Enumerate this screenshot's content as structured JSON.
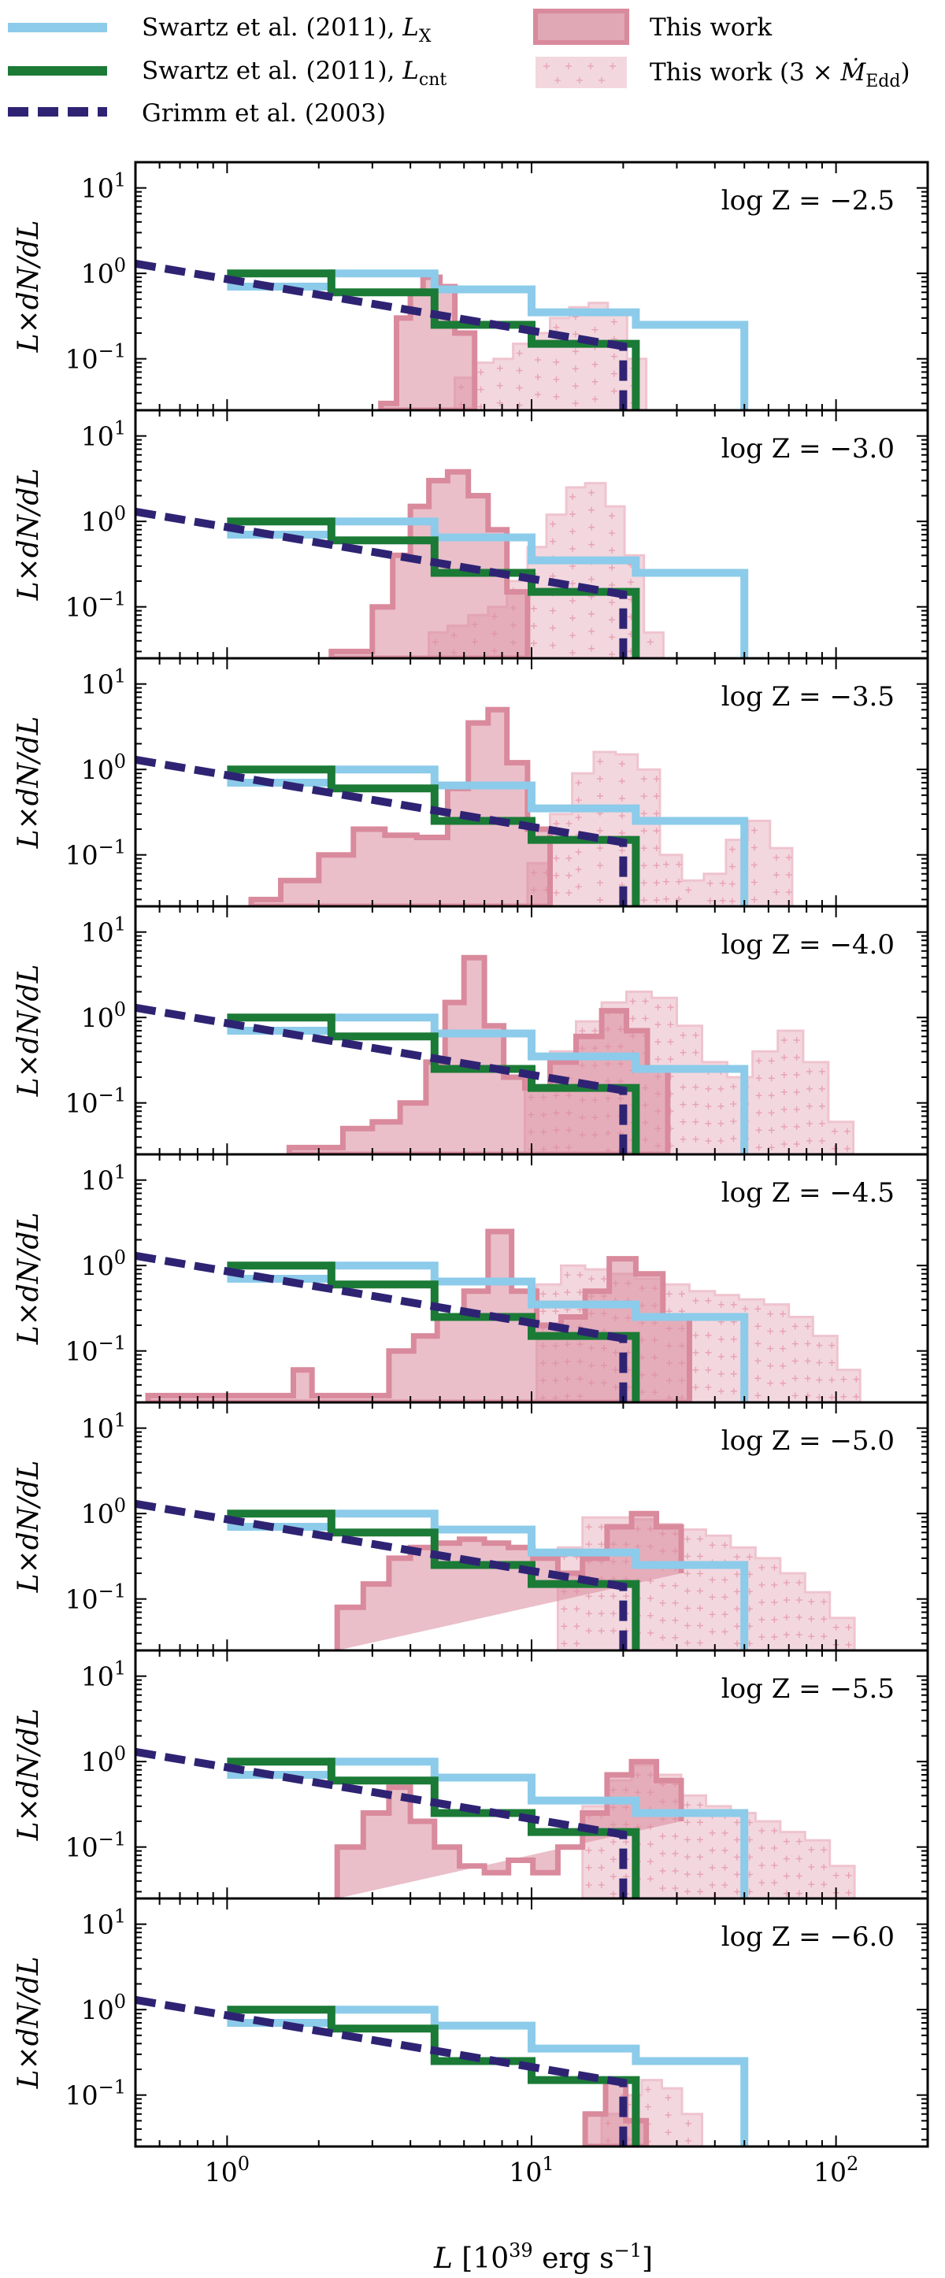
{
  "legend": {
    "items": [
      {
        "key": "lx",
        "label": "Swartz et al. (2011), L_X",
        "color": "#8ccbea"
      },
      {
        "key": "lcnt",
        "label": "Swartz et al. (2011), L_cnt",
        "color": "#1b7a36"
      },
      {
        "key": "grimm",
        "label": "Grimm et al. (2003)",
        "color": "#2e2373"
      },
      {
        "key": "work",
        "label": "This work",
        "color": "#d98a9c"
      },
      {
        "key": "work3",
        "label": "This work (3 × Ṁ_Edd)",
        "color": "#f0c6d0"
      }
    ]
  },
  "chart_data": {
    "type": "histogram-stack",
    "xlabel": "L [10^39 erg s^-1]",
    "ylabel": "L × dN/dL",
    "xscale": "log",
    "yscale": "log",
    "xlim": [
      0.5,
      200
    ],
    "ylim": [
      0.025,
      20
    ],
    "xticks": [
      {
        "value": 1,
        "label": "10^0"
      },
      {
        "value": 10,
        "label": "10^1"
      },
      {
        "value": 100,
        "label": "10^2"
      }
    ],
    "yticks": [
      {
        "value": 0.1,
        "label": "10^-1"
      },
      {
        "value": 1,
        "label": "10^0"
      },
      {
        "value": 10,
        "label": "10^1"
      }
    ],
    "reference": {
      "swartz_lx": {
        "edges": [
          1.0,
          2.2,
          4.8,
          10.0,
          22.0,
          50.0
        ],
        "values": [
          0.7,
          1.0,
          0.65,
          0.35,
          0.25
        ]
      },
      "swartz_lcnt": {
        "edges": [
          1.0,
          2.2,
          4.8,
          10.0,
          22.0
        ],
        "values": [
          1.0,
          0.6,
          0.25,
          0.15
        ]
      },
      "grimm": {
        "x": [
          0.5,
          20
        ],
        "y": [
          1.3,
          0.14
        ],
        "drop_at": 20
      }
    },
    "panels": [
      {
        "label": "log Z = −2.5",
        "work": {
          "edges": [
            3.2,
            3.6,
            4.0,
            4.4,
            5.0,
            5.6,
            6.5
          ],
          "values": [
            0.03,
            0.3,
            0.6,
            0.9,
            0.7,
            0.2
          ]
        },
        "work3": {
          "edges": [
            5.6,
            6.5,
            7.5,
            8.7,
            10.0,
            11.5,
            13.3,
            15.4,
            17.8,
            20.6,
            23.8
          ],
          "values": [
            0.06,
            0.09,
            0.1,
            0.15,
            0.2,
            0.3,
            0.4,
            0.45,
            0.35,
            0.1
          ]
        }
      },
      {
        "label": "log Z = −3.0",
        "work": {
          "edges": [
            2.2,
            3.0,
            3.5,
            4.0,
            4.6,
            5.3,
            6.2,
            7.2,
            8.3,
            9.7
          ],
          "values": [
            0.03,
            0.1,
            0.4,
            1.5,
            3.0,
            3.8,
            2.0,
            0.8,
            0.15
          ]
        },
        "work3": {
          "edges": [
            4.6,
            5.3,
            6.2,
            7.2,
            8.3,
            9.7,
            11.2,
            13.0,
            15.0,
            17.5,
            20.2,
            23.4,
            27.1
          ],
          "values": [
            0.05,
            0.06,
            0.08,
            0.1,
            0.2,
            0.5,
            1.2,
            2.5,
            2.8,
            1.5,
            0.4,
            0.05
          ]
        }
      },
      {
        "label": "log Z = −3.5",
        "work": {
          "edges": [
            1.2,
            1.5,
            2.0,
            2.6,
            3.3,
            4.2,
            5.3,
            6.2,
            7.2,
            8.3,
            9.7,
            11.5
          ],
          "values": [
            0.03,
            0.05,
            0.1,
            0.2,
            0.17,
            0.16,
            0.6,
            3.5,
            5.0,
            1.2,
            0.2
          ]
        },
        "work3": {
          "edges": [
            9.7,
            11.5,
            13.6,
            16.0,
            18.9,
            22.3,
            26.4,
            31.2,
            36.8,
            43.5,
            51.4,
            60.7,
            71.8
          ],
          "values": [
            0.08,
            0.3,
            0.9,
            1.6,
            1.5,
            1.0,
            0.1,
            0.05,
            0.06,
            0.15,
            0.25,
            0.12
          ]
        }
      },
      {
        "label": "log Z = −4.0",
        "work": {
          "edges": [
            1.6,
            2.0,
            2.4,
            3.0,
            3.7,
            4.5,
            5.2,
            6.0,
            7.0,
            8.1,
            9.5,
            11.5,
            14.0,
            17.0,
            20.5,
            24.0,
            28.0
          ],
          "values": [
            0.03,
            0.03,
            0.05,
            0.06,
            0.1,
            0.3,
            1.5,
            5.0,
            0.8,
            0.2,
            0.15,
            0.3,
            0.6,
            1.2,
            0.7,
            0.25
          ]
        },
        "work3": {
          "edges": [
            9.5,
            11.5,
            14.0,
            17.0,
            20.5,
            24.8,
            30.0,
            36.3,
            43.9,
            53.2,
            64.4,
            78.0,
            94.4,
            114.0
          ],
          "values": [
            0.15,
            0.4,
            0.9,
            1.5,
            2.0,
            1.7,
            0.8,
            0.3,
            0.2,
            0.4,
            0.7,
            0.3,
            0.06
          ]
        }
      },
      {
        "label": "log Z = −4.5",
        "work": {
          "edges": [
            0.55,
            0.8,
            1.4,
            1.65,
            1.9,
            2.3,
            3.4,
            4.1,
            4.9,
            6.0,
            7.2,
            8.6,
            10.4,
            12.5,
            15.0,
            18.0,
            22.0,
            27.0,
            33.0
          ],
          "values": [
            0.03,
            0.03,
            0.03,
            0.06,
            0.03,
            0.03,
            0.1,
            0.15,
            0.25,
            0.5,
            2.5,
            0.5,
            0.2,
            0.25,
            0.5,
            1.2,
            0.8,
            0.25
          ]
        },
        "work3": {
          "edges": [
            10.4,
            12.5,
            15.0,
            18.0,
            22.0,
            27.0,
            33.0,
            40.0,
            48.0,
            58.0,
            70.0,
            84.0,
            101.0,
            120.0
          ],
          "values": [
            0.6,
            1.0,
            0.9,
            0.8,
            0.7,
            0.6,
            0.5,
            0.45,
            0.4,
            0.35,
            0.25,
            0.15,
            0.06
          ]
        }
      },
      {
        "label": "log Z = −5.0",
        "work": {
          "edges": [
            2.3,
            2.8,
            3.4,
            4.0,
            4.8,
            5.8,
            7.0,
            8.4,
            10.1,
            12.2,
            14.7,
            17.7,
            21.3,
            25.7,
            31.0
          ],
          "values": [
            0.08,
            0.15,
            0.3,
            0.4,
            0.45,
            0.5,
            0.45,
            0.4,
            0.3,
            0.2,
            0.3,
            0.7,
            1.0,
            0.7,
            0.2
          ]
        },
        "work3": {
          "edges": [
            12.2,
            14.7,
            17.7,
            21.3,
            25.7,
            31.0,
            37.4,
            45.1,
            54.4,
            65.6,
            79.1,
            95.4,
            115.0
          ],
          "values": [
            0.4,
            0.9,
            0.9,
            0.85,
            0.75,
            0.65,
            0.55,
            0.4,
            0.3,
            0.2,
            0.12,
            0.06
          ]
        }
      },
      {
        "label": "log Z = −5.5",
        "work": {
          "edges": [
            2.3,
            2.8,
            3.4,
            4.0,
            4.8,
            5.8,
            7.0,
            8.4,
            10.1,
            12.2,
            14.7,
            17.7,
            21.3,
            25.7,
            31.0
          ],
          "values": [
            0.1,
            0.25,
            0.5,
            0.2,
            0.1,
            0.06,
            0.05,
            0.07,
            0.05,
            0.1,
            0.25,
            0.7,
            1.0,
            0.6,
            0.2
          ]
        },
        "work3": {
          "edges": [
            14.7,
            17.7,
            21.3,
            25.7,
            31.0,
            37.4,
            45.1,
            54.4,
            65.6,
            79.1,
            95.4,
            115.0
          ],
          "values": [
            0.3,
            0.6,
            0.9,
            0.7,
            0.4,
            0.3,
            0.25,
            0.2,
            0.15,
            0.12,
            0.06
          ]
        }
      },
      {
        "label": "log Z = −6.0",
        "work": {
          "edges": [
            15.0,
            17.5,
            20.4,
            23.8
          ],
          "values": [
            0.06,
            0.15,
            0.05
          ]
        },
        "work3": {
          "edges": [
            17.0,
            19.8,
            23.0,
            26.8,
            31.2,
            36.3
          ],
          "values": [
            0.06,
            0.1,
            0.15,
            0.12,
            0.06
          ]
        }
      }
    ]
  }
}
